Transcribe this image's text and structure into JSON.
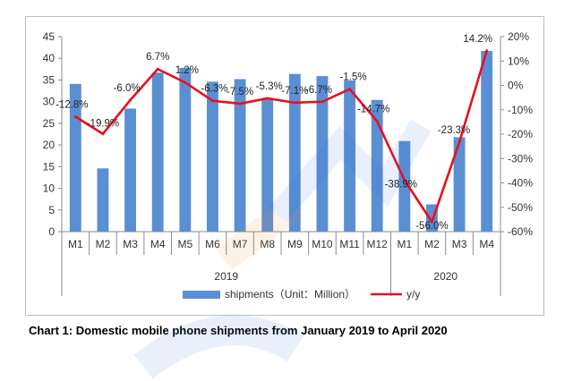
{
  "chart_data": {
    "type": "bar+line",
    "title": "",
    "caption": "Chart 1: Domestic mobile phone shipments from January 2019 to April 2020",
    "categories": [
      "M1",
      "M2",
      "M3",
      "M4",
      "M5",
      "M6",
      "M7",
      "M8",
      "M9",
      "M10",
      "M11",
      "M12",
      "M1",
      "M2",
      "M3",
      "M4"
    ],
    "year_groups": [
      {
        "label": "2019",
        "start": 0,
        "count": 12
      },
      {
        "label": "2020",
        "start": 12,
        "count": 4
      }
    ],
    "series": [
      {
        "name": "shipments（Unit：Million）",
        "kind": "bar",
        "axis": "left",
        "color": "#5b8fd4",
        "values": [
          34.1,
          14.6,
          28.4,
          36.7,
          37.8,
          34.6,
          35.2,
          30.5,
          36.4,
          35.9,
          34.9,
          30.4,
          20.9,
          6.3,
          21.8,
          41.7
        ]
      },
      {
        "name": "y/y",
        "kind": "line",
        "axis": "right",
        "color": "#e8101c",
        "values": [
          -12.8,
          -19.9,
          -6.0,
          6.7,
          1.2,
          -6.3,
          -7.5,
          -5.3,
          -7.1,
          -6.7,
          -1.5,
          -14.7,
          -38.9,
          -56.0,
          -23.3,
          14.2
        ],
        "labels": [
          "-12.8%",
          "-19.9%",
          "-6.0%",
          "6.7%",
          "1.2%",
          "-6.3%",
          "-7.5%",
          "-5.3%",
          "-7.1%",
          "-6.7%",
          "-1.5%",
          "-14.7%",
          "-38.9%",
          "-56.0%",
          "-23.3%",
          "14.2%"
        ]
      }
    ],
    "y_left": {
      "min": 0,
      "max": 45,
      "ticks": [
        "0",
        "5",
        "10",
        "15",
        "20",
        "25",
        "30",
        "35",
        "40",
        "45"
      ]
    },
    "y_right": {
      "min": -60,
      "max": 20,
      "ticks": [
        "-60%",
        "-50%",
        "-40%",
        "-30%",
        "-20%",
        "-10%",
        "0%",
        "10%",
        "20%"
      ]
    },
    "legend_placement": "bottom",
    "grid": false
  }
}
